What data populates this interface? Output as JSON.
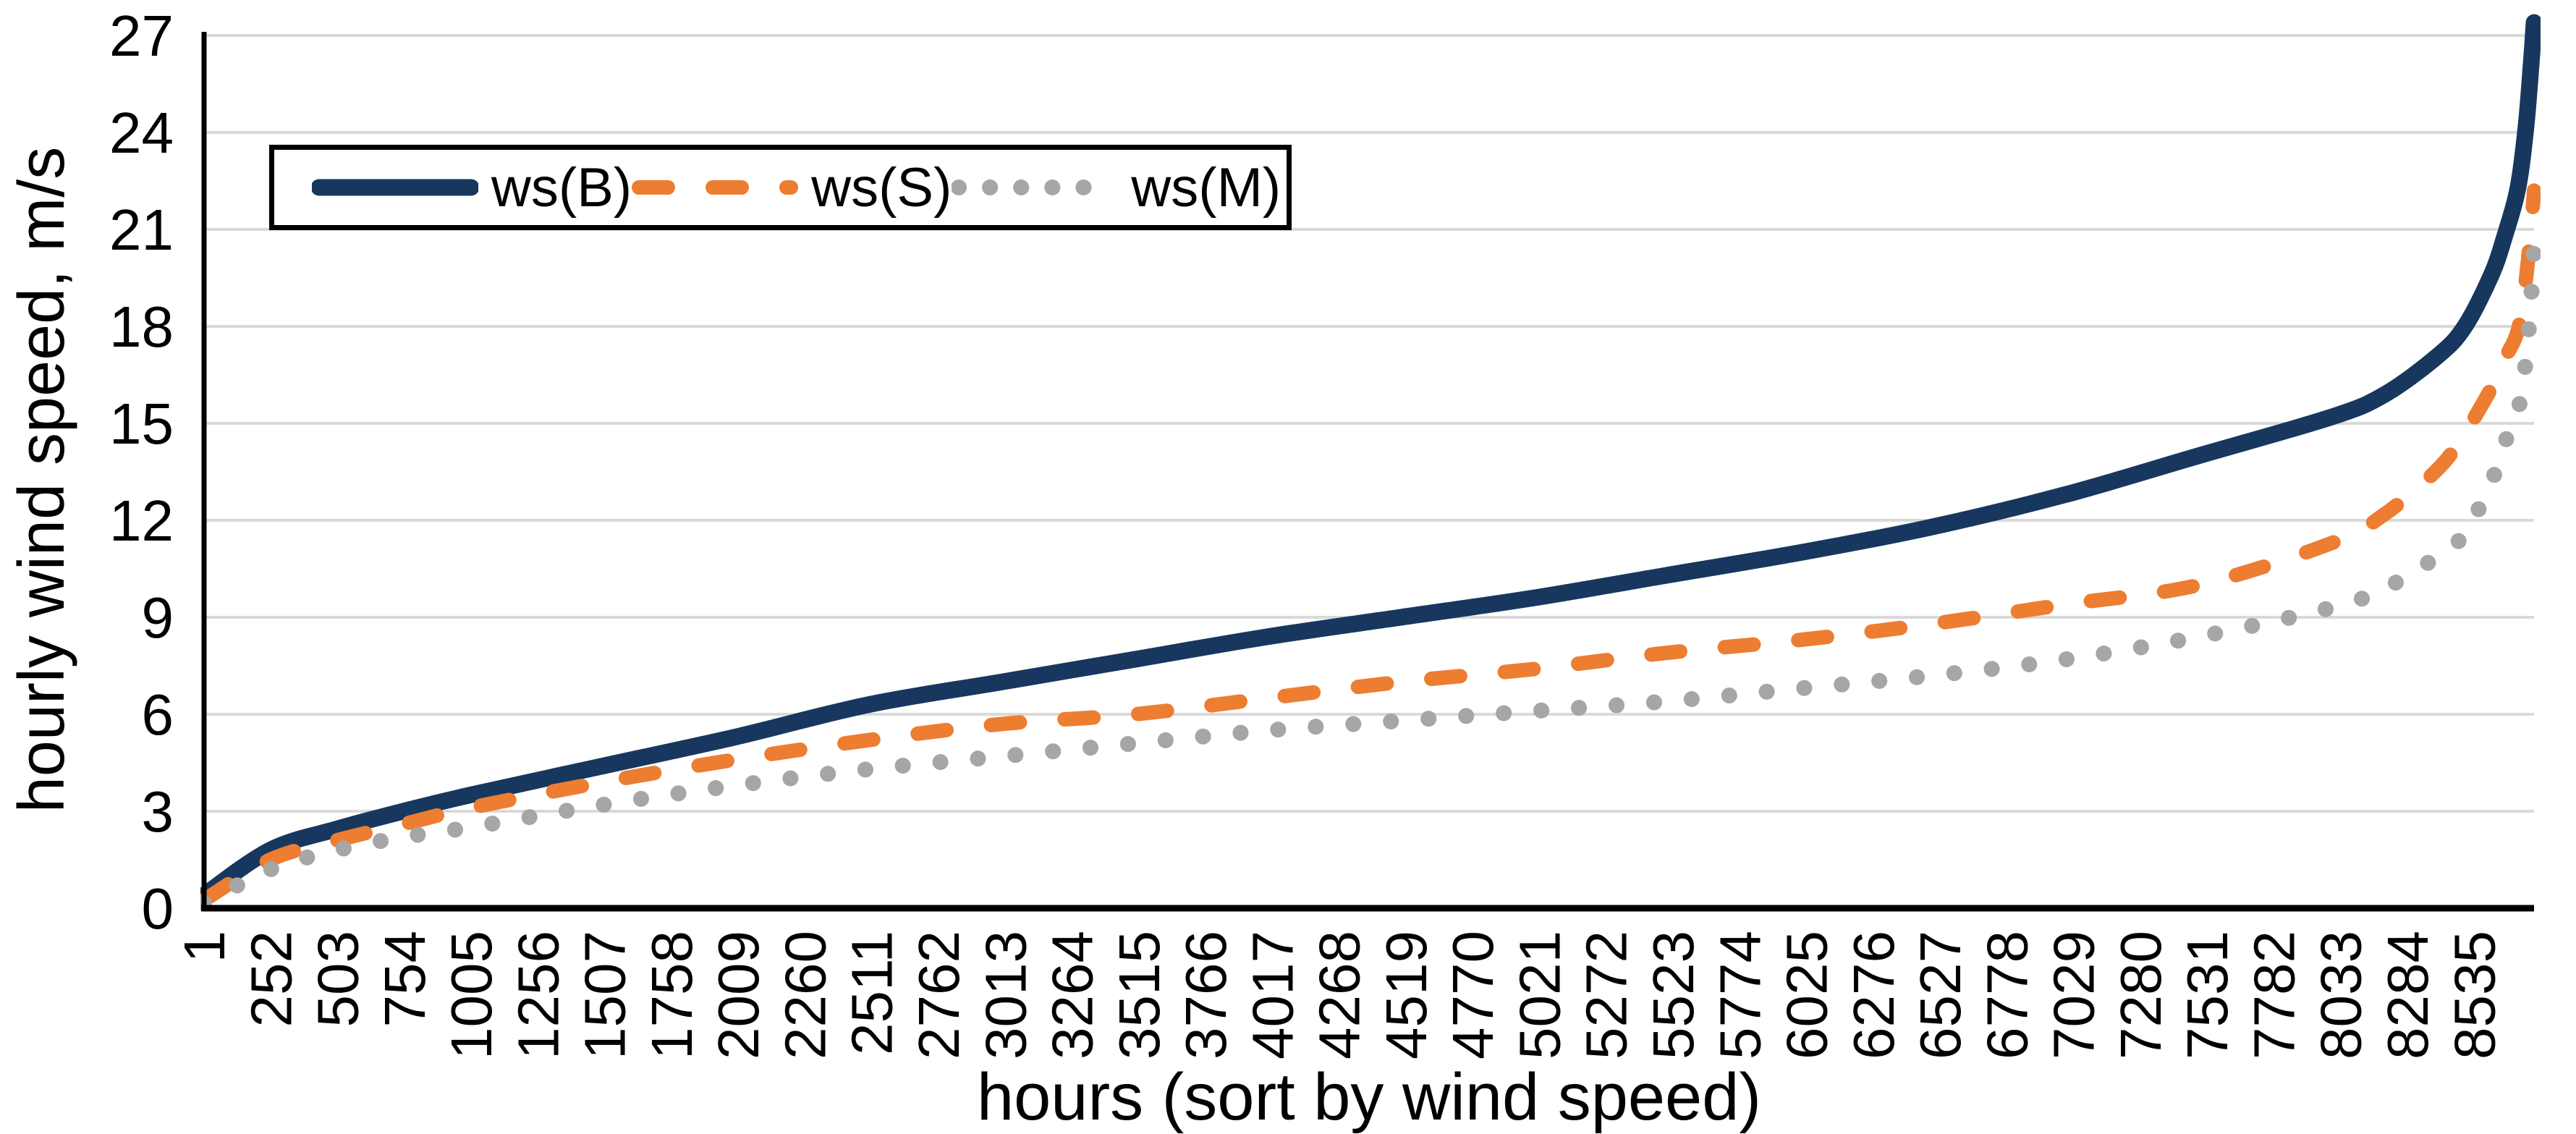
{
  "chart_data": {
    "type": "line",
    "title": "",
    "xlabel": "hours (sort by wind speed)",
    "ylabel": "hourly wind speed, m/s",
    "x_axis": {
      "range": [
        1,
        8760
      ],
      "tick_step": 251,
      "tick_labels": [
        "1",
        "252",
        "503",
        "754",
        "1005",
        "1256",
        "1507",
        "1758",
        "2009",
        "2260",
        "2511",
        "2762",
        "3013",
        "3264",
        "3515",
        "3766",
        "4017",
        "4268",
        "4519",
        "4770",
        "5021",
        "5272",
        "5523",
        "5774",
        "6025",
        "6276",
        "6527",
        "6778",
        "7029",
        "7280",
        "7531",
        "7782",
        "8033",
        "8284",
        "8535"
      ],
      "tick_label_rotation_deg": -90
    },
    "y_axis": {
      "range": [
        0,
        27
      ],
      "ticks": [
        0,
        3,
        6,
        9,
        12,
        15,
        18,
        21,
        24,
        27
      ],
      "unit": "m/s"
    },
    "grid": "horizontal",
    "legend_position": "top-left-inside",
    "x": [
      1,
      250,
      500,
      750,
      1000,
      1500,
      2000,
      2500,
      3000,
      3500,
      4000,
      4500,
      5000,
      5500,
      6000,
      6500,
      7000,
      7500,
      8000,
      8200,
      8400,
      8500,
      8600,
      8650,
      8700,
      8730,
      8750,
      8760
    ],
    "series": [
      {
        "name": "ws(B)",
        "style": "solid",
        "color": "#17375E",
        "values": [
          0.4,
          1.8,
          2.45,
          3.0,
          3.5,
          4.4,
          5.3,
          6.3,
          7.0,
          7.7,
          8.4,
          9.0,
          9.6,
          10.3,
          11.0,
          11.8,
          12.8,
          14.0,
          15.2,
          15.9,
          17.1,
          18.0,
          19.6,
          20.8,
          22.3,
          24.2,
          26.2,
          27.4
        ]
      },
      {
        "name": "ws(S)",
        "style": "dashed",
        "color": "#ED7D31",
        "values": [
          0.25,
          1.5,
          2.1,
          2.6,
          3.1,
          3.9,
          4.6,
          5.2,
          5.7,
          6.0,
          6.5,
          7.0,
          7.4,
          7.9,
          8.3,
          8.8,
          9.4,
          10.0,
          11.3,
          12.2,
          13.6,
          14.7,
          16.1,
          17.0,
          17.9,
          19.5,
          21.2,
          22.2
        ]
      },
      {
        "name": "ws(M)",
        "style": "dotted",
        "color": "#A6A6A6",
        "values": [
          0.15,
          1.2,
          1.8,
          2.2,
          2.5,
          3.2,
          3.8,
          4.3,
          4.7,
          5.1,
          5.5,
          5.8,
          6.1,
          6.4,
          6.8,
          7.2,
          7.7,
          8.4,
          9.3,
          9.9,
          10.9,
          11.6,
          13.2,
          14.4,
          15.4,
          17.0,
          19.0,
          20.4
        ]
      }
    ],
    "colors": {
      "gridline": "#D9D9D9",
      "axis": "#000000",
      "text": "#000000",
      "background": "#FFFFFF",
      "legend_border": "#000000"
    }
  }
}
